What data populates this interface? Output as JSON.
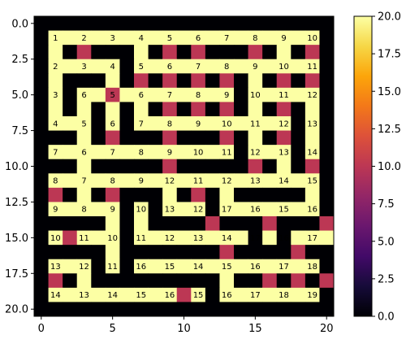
{
  "chart_data": {
    "type": "heatmap",
    "title": "",
    "xlabel": "",
    "ylabel": "",
    "rows": 21,
    "cols": 21,
    "xlim": [
      -0.5,
      20.5
    ],
    "ylim": [
      20.5,
      -0.5
    ],
    "x_ticks": [
      0,
      5,
      10,
      15,
      20
    ],
    "x_tick_labels": [
      "0",
      "5",
      "10",
      "15",
      "20"
    ],
    "y_ticks": [
      0,
      2.5,
      5,
      7.5,
      10,
      12.5,
      15,
      17.5,
      20
    ],
    "y_tick_labels": [
      "0.0",
      "2.5",
      "5.0",
      "7.5",
      "10.0",
      "12.5",
      "15.0",
      "17.5",
      "20.0"
    ],
    "colormap": "inferno",
    "colorbar": {
      "range": [
        0,
        20
      ],
      "ticks": [
        0,
        2.5,
        5,
        7.5,
        10,
        12.5,
        15,
        17.5,
        20
      ],
      "tick_labels": [
        "0.0",
        "2.5",
        "5.0",
        "7.5",
        "10.0",
        "12.5",
        "15.0",
        "17.5",
        "20.0"
      ]
    },
    "grid": false,
    "cell_values": [
      [
        0,
        0,
        0,
        0,
        0,
        0,
        0,
        0,
        0,
        0,
        0,
        0,
        0,
        0,
        0,
        0,
        0,
        0,
        0,
        0,
        0
      ],
      [
        0,
        20,
        20,
        20,
        20,
        20,
        20,
        20,
        20,
        20,
        20,
        20,
        20,
        20,
        20,
        20,
        20,
        20,
        20,
        20,
        0
      ],
      [
        0,
        20,
        0,
        10,
        0,
        0,
        0,
        20,
        0,
        10,
        0,
        10,
        0,
        0,
        0,
        10,
        0,
        20,
        0,
        10,
        0
      ],
      [
        0,
        20,
        20,
        20,
        20,
        20,
        0,
        20,
        20,
        20,
        20,
        20,
        20,
        20,
        20,
        20,
        20,
        20,
        20,
        20,
        0
      ],
      [
        0,
        20,
        0,
        0,
        0,
        20,
        0,
        10,
        0,
        10,
        0,
        10,
        0,
        10,
        0,
        20,
        0,
        10,
        0,
        10,
        0
      ],
      [
        0,
        20,
        0,
        20,
        20,
        10,
        20,
        20,
        20,
        20,
        20,
        20,
        20,
        20,
        0,
        20,
        20,
        20,
        20,
        20,
        0
      ],
      [
        0,
        20,
        0,
        20,
        0,
        20,
        0,
        20,
        0,
        10,
        0,
        10,
        0,
        10,
        0,
        20,
        0,
        10,
        0,
        20,
        0
      ],
      [
        0,
        20,
        20,
        20,
        0,
        20,
        0,
        20,
        20,
        20,
        20,
        20,
        20,
        20,
        20,
        20,
        20,
        20,
        0,
        20,
        0
      ],
      [
        0,
        0,
        0,
        20,
        0,
        10,
        0,
        0,
        0,
        10,
        0,
        0,
        0,
        10,
        0,
        20,
        0,
        10,
        0,
        20,
        0
      ],
      [
        0,
        20,
        20,
        20,
        20,
        20,
        20,
        20,
        20,
        20,
        20,
        20,
        20,
        20,
        0,
        20,
        20,
        20,
        0,
        20,
        0
      ],
      [
        0,
        0,
        0,
        20,
        0,
        0,
        0,
        0,
        0,
        10,
        0,
        0,
        0,
        0,
        0,
        10,
        0,
        20,
        0,
        10,
        0
      ],
      [
        0,
        20,
        20,
        20,
        20,
        20,
        20,
        20,
        20,
        20,
        20,
        20,
        20,
        20,
        20,
        20,
        20,
        20,
        20,
        20,
        0
      ],
      [
        0,
        10,
        0,
        20,
        0,
        10,
        0,
        0,
        0,
        20,
        0,
        10,
        0,
        20,
        0,
        0,
        0,
        0,
        0,
        20,
        0
      ],
      [
        0,
        20,
        20,
        20,
        20,
        20,
        0,
        20,
        0,
        20,
        20,
        20,
        0,
        20,
        20,
        20,
        20,
        20,
        20,
        20,
        0
      ],
      [
        0,
        0,
        0,
        0,
        0,
        20,
        0,
        20,
        0,
        0,
        0,
        0,
        10,
        0,
        0,
        0,
        10,
        0,
        0,
        0,
        10
      ],
      [
        0,
        20,
        10,
        20,
        20,
        20,
        0,
        20,
        20,
        20,
        20,
        20,
        20,
        20,
        20,
        0,
        20,
        0,
        20,
        20,
        20
      ],
      [
        0,
        0,
        0,
        0,
        0,
        20,
        0,
        0,
        0,
        0,
        0,
        0,
        0,
        10,
        0,
        0,
        0,
        0,
        10,
        0,
        0
      ],
      [
        0,
        20,
        20,
        20,
        0,
        20,
        0,
        20,
        20,
        20,
        20,
        20,
        20,
        20,
        20,
        20,
        20,
        20,
        20,
        20,
        0
      ],
      [
        0,
        10,
        0,
        20,
        0,
        0,
        0,
        0,
        0,
        0,
        0,
        0,
        0,
        20,
        0,
        0,
        10,
        0,
        10,
        0,
        10
      ],
      [
        0,
        20,
        20,
        20,
        20,
        20,
        20,
        20,
        20,
        20,
        10,
        20,
        0,
        20,
        20,
        20,
        20,
        20,
        20,
        20,
        0
      ],
      [
        0,
        0,
        0,
        0,
        0,
        0,
        0,
        0,
        0,
        0,
        0,
        0,
        0,
        0,
        0,
        0,
        0,
        0,
        0,
        0,
        0
      ]
    ],
    "annotations": [
      {
        "row": 1,
        "col": 1,
        "text": "1"
      },
      {
        "row": 1,
        "col": 3,
        "text": "2"
      },
      {
        "row": 1,
        "col": 5,
        "text": "3"
      },
      {
        "row": 1,
        "col": 7,
        "text": "4"
      },
      {
        "row": 1,
        "col": 9,
        "text": "5"
      },
      {
        "row": 1,
        "col": 11,
        "text": "6"
      },
      {
        "row": 1,
        "col": 13,
        "text": "7"
      },
      {
        "row": 1,
        "col": 15,
        "text": "8"
      },
      {
        "row": 1,
        "col": 17,
        "text": "9"
      },
      {
        "row": 1,
        "col": 19,
        "text": "10"
      },
      {
        "row": 3,
        "col": 1,
        "text": "2"
      },
      {
        "row": 3,
        "col": 3,
        "text": "3"
      },
      {
        "row": 3,
        "col": 5,
        "text": "4"
      },
      {
        "row": 3,
        "col": 7,
        "text": "5"
      },
      {
        "row": 3,
        "col": 9,
        "text": "6"
      },
      {
        "row": 3,
        "col": 11,
        "text": "7"
      },
      {
        "row": 3,
        "col": 13,
        "text": "8"
      },
      {
        "row": 3,
        "col": 15,
        "text": "9"
      },
      {
        "row": 3,
        "col": 17,
        "text": "10"
      },
      {
        "row": 3,
        "col": 19,
        "text": "11"
      },
      {
        "row": 5,
        "col": 1,
        "text": "3"
      },
      {
        "row": 5,
        "col": 3,
        "text": "6"
      },
      {
        "row": 5,
        "col": 5,
        "text": "5"
      },
      {
        "row": 5,
        "col": 7,
        "text": "6"
      },
      {
        "row": 5,
        "col": 9,
        "text": "7"
      },
      {
        "row": 5,
        "col": 11,
        "text": "8"
      },
      {
        "row": 5,
        "col": 13,
        "text": "9"
      },
      {
        "row": 5,
        "col": 15,
        "text": "10"
      },
      {
        "row": 5,
        "col": 17,
        "text": "11"
      },
      {
        "row": 5,
        "col": 19,
        "text": "12"
      },
      {
        "row": 7,
        "col": 1,
        "text": "4"
      },
      {
        "row": 7,
        "col": 3,
        "text": "5"
      },
      {
        "row": 7,
        "col": 5,
        "text": "6"
      },
      {
        "row": 7,
        "col": 7,
        "text": "7"
      },
      {
        "row": 7,
        "col": 9,
        "text": "8"
      },
      {
        "row": 7,
        "col": 11,
        "text": "9"
      },
      {
        "row": 7,
        "col": 13,
        "text": "10"
      },
      {
        "row": 7,
        "col": 15,
        "text": "11"
      },
      {
        "row": 7,
        "col": 17,
        "text": "12"
      },
      {
        "row": 7,
        "col": 19,
        "text": "13"
      },
      {
        "row": 9,
        "col": 1,
        "text": "7"
      },
      {
        "row": 9,
        "col": 3,
        "text": "6"
      },
      {
        "row": 9,
        "col": 5,
        "text": "7"
      },
      {
        "row": 9,
        "col": 7,
        "text": "8"
      },
      {
        "row": 9,
        "col": 9,
        "text": "9"
      },
      {
        "row": 9,
        "col": 11,
        "text": "10"
      },
      {
        "row": 9,
        "col": 13,
        "text": "11"
      },
      {
        "row": 9,
        "col": 15,
        "text": "12"
      },
      {
        "row": 9,
        "col": 17,
        "text": "13"
      },
      {
        "row": 9,
        "col": 19,
        "text": "14"
      },
      {
        "row": 11,
        "col": 1,
        "text": "8"
      },
      {
        "row": 11,
        "col": 3,
        "text": "7"
      },
      {
        "row": 11,
        "col": 5,
        "text": "8"
      },
      {
        "row": 11,
        "col": 7,
        "text": "9"
      },
      {
        "row": 11,
        "col": 9,
        "text": "12"
      },
      {
        "row": 11,
        "col": 11,
        "text": "11"
      },
      {
        "row": 11,
        "col": 13,
        "text": "12"
      },
      {
        "row": 11,
        "col": 15,
        "text": "13"
      },
      {
        "row": 11,
        "col": 17,
        "text": "14"
      },
      {
        "row": 11,
        "col": 19,
        "text": "15"
      },
      {
        "row": 13,
        "col": 1,
        "text": "9"
      },
      {
        "row": 13,
        "col": 3,
        "text": "8"
      },
      {
        "row": 13,
        "col": 5,
        "text": "9"
      },
      {
        "row": 13,
        "col": 7,
        "text": "10"
      },
      {
        "row": 13,
        "col": 9,
        "text": "13"
      },
      {
        "row": 13,
        "col": 11,
        "text": "12"
      },
      {
        "row": 13,
        "col": 13,
        "text": "17"
      },
      {
        "row": 13,
        "col": 15,
        "text": "16"
      },
      {
        "row": 13,
        "col": 17,
        "text": "15"
      },
      {
        "row": 13,
        "col": 19,
        "text": "16"
      },
      {
        "row": 15,
        "col": 1,
        "text": "10"
      },
      {
        "row": 15,
        "col": 3,
        "text": "11"
      },
      {
        "row": 15,
        "col": 5,
        "text": "10"
      },
      {
        "row": 15,
        "col": 7,
        "text": "11"
      },
      {
        "row": 15,
        "col": 9,
        "text": "12"
      },
      {
        "row": 15,
        "col": 11,
        "text": "13"
      },
      {
        "row": 15,
        "col": 13,
        "text": "14"
      },
      {
        "row": 15,
        "col": 15,
        "text": "17"
      },
      {
        "row": 15,
        "col": 17,
        "text": "16"
      },
      {
        "row": 15,
        "col": 19,
        "text": "17"
      },
      {
        "row": 17,
        "col": 1,
        "text": "13"
      },
      {
        "row": 17,
        "col": 3,
        "text": "12"
      },
      {
        "row": 17,
        "col": 5,
        "text": "11"
      },
      {
        "row": 17,
        "col": 7,
        "text": "16"
      },
      {
        "row": 17,
        "col": 9,
        "text": "15"
      },
      {
        "row": 17,
        "col": 11,
        "text": "14"
      },
      {
        "row": 17,
        "col": 13,
        "text": "15"
      },
      {
        "row": 17,
        "col": 15,
        "text": "16"
      },
      {
        "row": 17,
        "col": 17,
        "text": "17"
      },
      {
        "row": 17,
        "col": 19,
        "text": "18"
      },
      {
        "row": 19,
        "col": 1,
        "text": "14"
      },
      {
        "row": 19,
        "col": 3,
        "text": "13"
      },
      {
        "row": 19,
        "col": 5,
        "text": "14"
      },
      {
        "row": 19,
        "col": 7,
        "text": "15"
      },
      {
        "row": 19,
        "col": 9,
        "text": "16"
      },
      {
        "row": 19,
        "col": 11,
        "text": "15"
      },
      {
        "row": 19,
        "col": 13,
        "text": "16"
      },
      {
        "row": 19,
        "col": 15,
        "text": "17"
      },
      {
        "row": 19,
        "col": 17,
        "text": "18"
      },
      {
        "row": 19,
        "col": 19,
        "text": "19"
      }
    ]
  }
}
